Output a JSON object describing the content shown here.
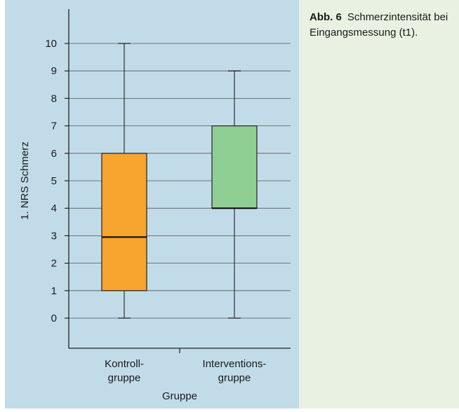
{
  "caption": {
    "label": "Abb. 6",
    "text": "Schmerzintensität bei Eingangsmessung (t1)."
  },
  "colors": {
    "chart_background": "#c2dbe9",
    "caption_background": "#e9f1e3",
    "kontrollgruppe_box": "#f7a52f",
    "interventionsgruppe_box": "#8fcf94"
  },
  "chart_data": {
    "type": "boxplot",
    "ylabel": "1. NRS Schmerz",
    "xlabel": "Gruppe",
    "ylim": [
      -1.1,
      11.2
    ],
    "yticks": [
      0,
      1,
      2,
      3,
      4,
      5,
      6,
      7,
      8,
      9,
      10
    ],
    "grid": true,
    "categories": [
      {
        "label_line1": "Kontroll-",
        "label_line2": "gruppe"
      },
      {
        "label_line1": "Interventions-",
        "label_line2": "gruppe"
      }
    ],
    "boxes": [
      {
        "min": 0,
        "q1": 1,
        "median": 2.95,
        "q3": 6,
        "max": 10,
        "color": "#f7a52f"
      },
      {
        "min": 0,
        "q1": 4,
        "median": 4,
        "q3": 7,
        "max": 9,
        "color": "#8fcf94"
      }
    ]
  }
}
